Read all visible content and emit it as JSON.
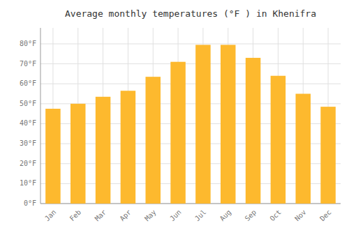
{
  "chart_data": {
    "type": "bar",
    "title": "Average monthly temperatures (°F ) in Khenifra",
    "categories": [
      "Jan",
      "Feb",
      "Mar",
      "Apr",
      "May",
      "Jun",
      "Jul",
      "Aug",
      "Sep",
      "Oct",
      "Nov",
      "Dec"
    ],
    "values": [
      47.5,
      50.0,
      53.5,
      56.5,
      63.5,
      71.0,
      79.5,
      79.5,
      73.0,
      64.0,
      55.0,
      48.5
    ],
    "color": "#FDB92E",
    "ylim": [
      0,
      88
    ],
    "yticks": [
      {
        "value": 0,
        "label": "0°F"
      },
      {
        "value": 10,
        "label": "10°F"
      },
      {
        "value": 20,
        "label": "20°F"
      },
      {
        "value": 30,
        "label": "30°F"
      },
      {
        "value": 40,
        "label": "40°F"
      },
      {
        "value": 50,
        "label": "50°F"
      },
      {
        "value": 60,
        "label": "60°F"
      },
      {
        "value": 70,
        "label": "70°F"
      },
      {
        "value": 80,
        "label": "80°F"
      }
    ],
    "grid": true
  }
}
